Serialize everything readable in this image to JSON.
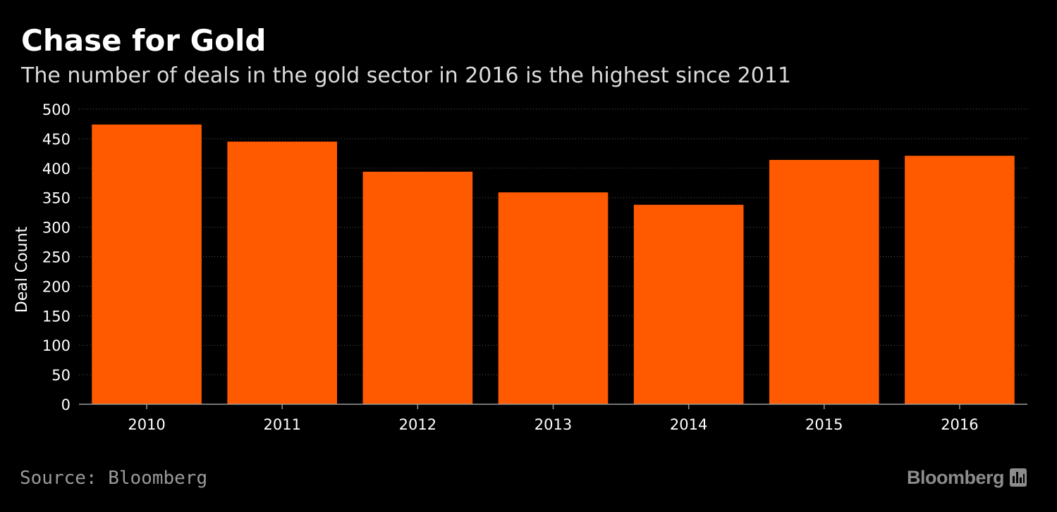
{
  "title": "Chase for Gold",
  "subtitle": "The number of deals in the gold sector in 2016 is the highest since 2011",
  "source": "Source: Bloomberg",
  "logo": {
    "text": "Bloomberg",
    "icon": "bloomberg-terminal-icon"
  },
  "colors": {
    "background": "#000000",
    "bar": "#ff5a00",
    "grid": "#5a5a5a",
    "text": "#ffffff",
    "muted": "#9a9a9a"
  },
  "chart_data": {
    "type": "bar",
    "categories": [
      "2010",
      "2011",
      "2012",
      "2013",
      "2014",
      "2015",
      "2016"
    ],
    "values": [
      474,
      445,
      394,
      359,
      338,
      414,
      421
    ],
    "ylabel": "Deal Count",
    "xlabel": "",
    "ylim": [
      0,
      500
    ],
    "yticks": [
      0,
      50,
      100,
      150,
      200,
      250,
      300,
      350,
      400,
      450,
      500
    ],
    "grid": true
  }
}
